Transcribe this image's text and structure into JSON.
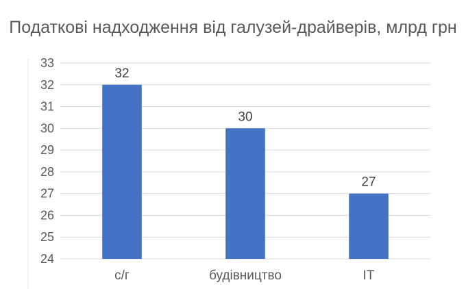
{
  "chart_data": {
    "type": "bar",
    "title": "Податкові надходження від галузей-драйверів, млрд грн",
    "xlabel": "",
    "ylabel": "",
    "categories": [
      "с/г",
      "будівництво",
      "ІТ"
    ],
    "values": [
      32,
      30,
      27
    ],
    "ylim": [
      24,
      33
    ],
    "yticks": [
      24,
      25,
      26,
      27,
      28,
      29,
      30,
      31,
      32,
      33
    ],
    "grid": true,
    "legend": "none",
    "bar_color": "#4472C4",
    "data_labels": true
  }
}
